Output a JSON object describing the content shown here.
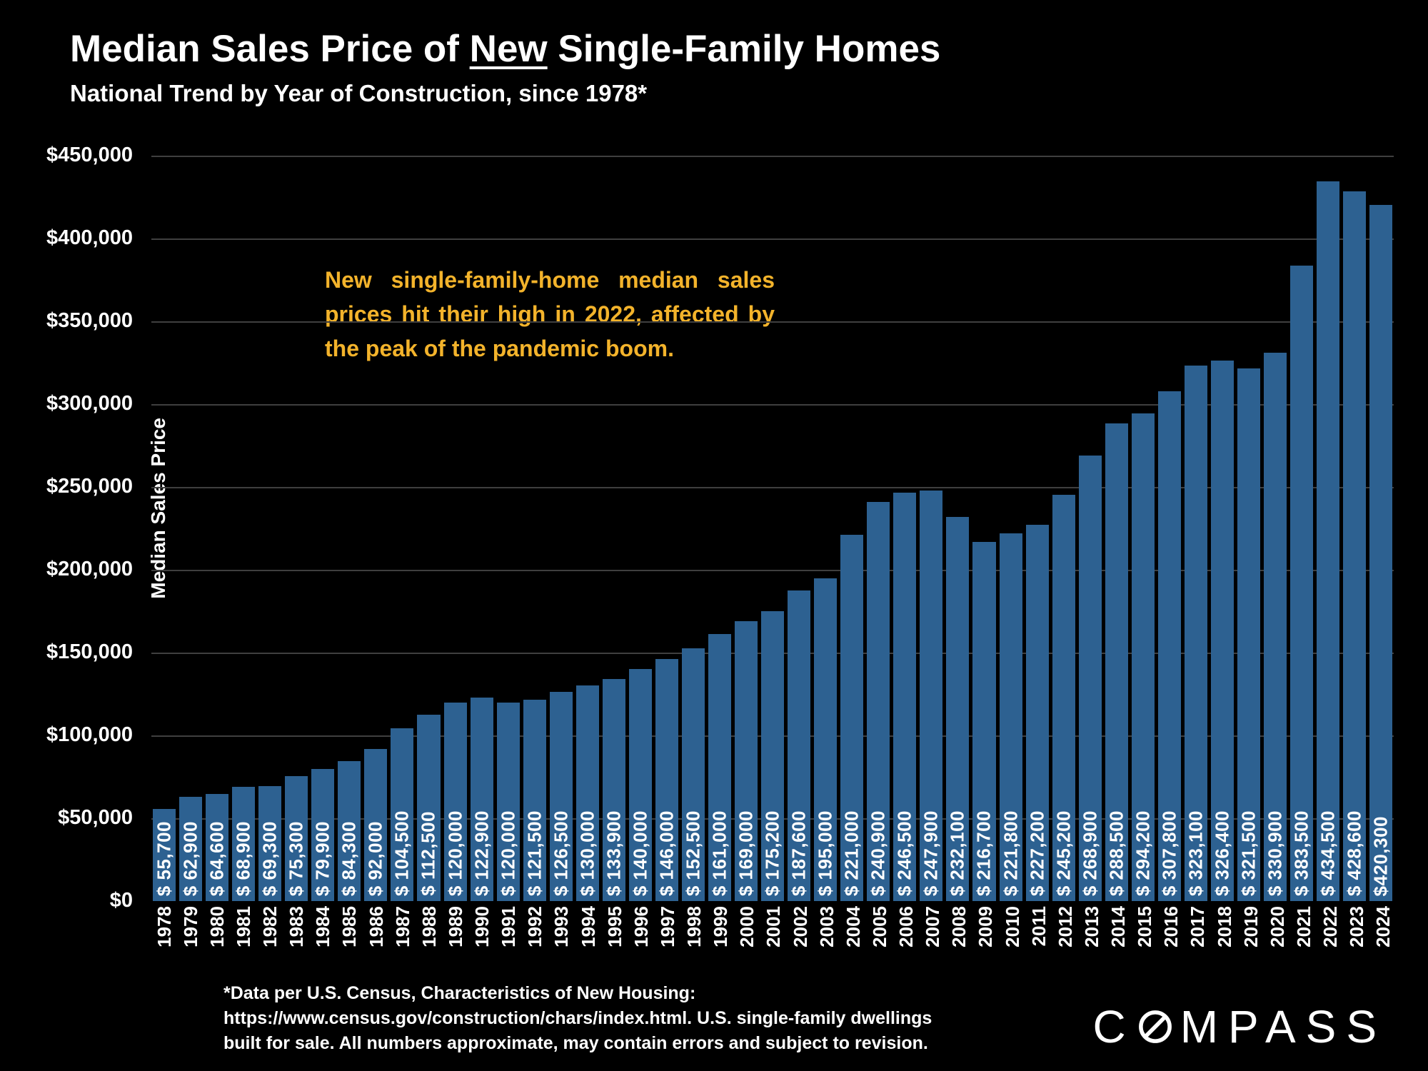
{
  "title": {
    "prefix": "Median Sales Price of ",
    "underlined": "New",
    "suffix": " Single-Family Homes"
  },
  "subtitle": "National Trend by Year of Construction, since 1978*",
  "annotation": {
    "text": "New single-family-home median sales prices hit their high in 2022, affected by the peak of the pandemic boom.",
    "color": "#f3b32b"
  },
  "footnote": {
    "lines": [
      "*Data per U.S. Census, Characteristics of New Housing:",
      "https://www.census.gov/construction/chars/index.html. U.S. single-family dwellings",
      "built for sale. All numbers approximate, may contain errors and subject to revision."
    ]
  },
  "logo": {
    "label": "COMPASS",
    "left": "C",
    "right": "MPASS"
  },
  "colors": {
    "background": "#000000",
    "bar": "#2d6191",
    "grid": "#3f3f3f",
    "text": "#ffffff",
    "annotation": "#f3b32b"
  },
  "chart_data": {
    "type": "bar",
    "title": "Median Sales Price of New Single-Family Homes",
    "subtitle": "National Trend by Year of Construction, since 1978*",
    "xlabel": "",
    "ylabel": "Median Sales Price",
    "ylim": [
      0,
      450000
    ],
    "ytick_step": 50000,
    "grid": "horizontal",
    "legend": "none",
    "bar_color": "#2d6191",
    "categories": [
      "1978",
      "1979",
      "1980",
      "1981",
      "1982",
      "1983",
      "1984",
      "1985",
      "1986",
      "1987",
      "1988",
      "1989",
      "1990",
      "1991",
      "1992",
      "1993",
      "1994",
      "1995",
      "1996",
      "1997",
      "1998",
      "1999",
      "2000",
      "2001",
      "2002",
      "2003",
      "2004",
      "2005",
      "2006",
      "2007",
      "2008",
      "2009",
      "2010",
      "2011",
      "2012",
      "2013",
      "2014",
      "2015",
      "2016",
      "2017",
      "2018",
      "2019",
      "2020",
      "2021",
      "2022",
      "2023",
      "2024"
    ],
    "values": [
      55700,
      62900,
      64600,
      68900,
      69300,
      75300,
      79900,
      84300,
      92000,
      104500,
      112500,
      120000,
      122900,
      120000,
      121500,
      126500,
      130000,
      133900,
      140000,
      146000,
      152500,
      161000,
      169000,
      175200,
      187600,
      195000,
      221000,
      240900,
      246500,
      247900,
      232100,
      216700,
      221800,
      227200,
      245200,
      268900,
      288500,
      294200,
      307800,
      323100,
      326400,
      321500,
      330900,
      383500,
      434500,
      428600,
      420300
    ],
    "value_labels": [
      "$ 55,700",
      "$ 62,900",
      "$ 64,600",
      "$ 68,900",
      "$ 69,300",
      "$ 75,300",
      "$ 79,900",
      "$ 84,300",
      "$ 92,000",
      "$ 104,500",
      "$ 112,500",
      "$ 120,000",
      "$ 122,900",
      "$ 120,000",
      "$ 121,500",
      "$ 126,500",
      "$ 130,000",
      "$ 133,900",
      "$ 140,000",
      "$ 146,000",
      "$ 152,500",
      "$ 161,000",
      "$ 169,000",
      "$ 175,200",
      "$ 187,600",
      "$ 195,000",
      "$ 221,000",
      "$ 240,900",
      "$ 246,500",
      "$ 247,900",
      "$ 232,100",
      "$ 216,700",
      "$ 221,800",
      "$ 227,200",
      "$ 245,200",
      "$ 268,900",
      "$ 288,500",
      "$ 294,200",
      "$ 307,800",
      "$ 323,100",
      "$ 326,400",
      "$ 321,500",
      "$ 330,900",
      "$ 383,500",
      "$ 434,500",
      "$ 428,600",
      "$420,300"
    ],
    "annotation": "New single-family-home median sales prices hit their high in 2022, affected by the peak of the pandemic boom."
  }
}
